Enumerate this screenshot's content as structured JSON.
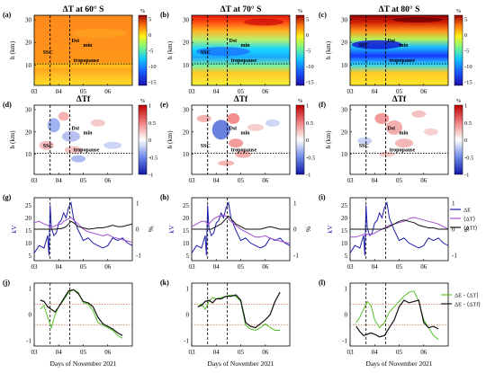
{
  "figure": {
    "panel_labels": [
      "(a)",
      "(b)",
      "(c)",
      "(d)",
      "(e)",
      "(f)",
      "(g)",
      "(h)",
      "(i)",
      "(j)",
      "(k)",
      "(l)"
    ],
    "xlabel": "Days of November 2021",
    "x_ticks": [
      "03",
      "04",
      "05",
      "06"
    ],
    "row1_titles": [
      "ΔT at 60° S",
      "ΔT at 70° S",
      "ΔT at 80° S"
    ],
    "row2_title": "ΔTf",
    "h_label": "h (km)",
    "h_ticks": [
      "10",
      "20",
      "30"
    ],
    "annotations": {
      "ssc": "SSC",
      "dst": "Dst",
      "dst_sub": "min",
      "tropo": "tropopause"
    },
    "cbar1": {
      "unit": "%",
      "ticks": [
        "5",
        "0",
        "-5",
        "-10",
        "-15"
      ]
    },
    "cbar2": {
      "unit": "%",
      "ticks": [
        "1",
        "0.5",
        "0",
        "-0.5",
        "-1"
      ]
    },
    "row3": {
      "ylabel_left": "kV",
      "ylabel_right": "%",
      "left_ticks": [
        "5",
        "10",
        "15",
        "20",
        "25"
      ],
      "right_ticks": [
        "1",
        "0",
        "-1"
      ]
    },
    "row4": {
      "ticks": [
        "1",
        "0",
        "-1"
      ]
    },
    "legend3": [
      {
        "label": "ΔE",
        "color": "#1f1fa8"
      },
      {
        "label": "⟨ΔT⟩",
        "color": "#a24fd1"
      },
      {
        "label": "⟨ΔTf⟩",
        "color": "#111111"
      }
    ],
    "legend4": [
      {
        "label": "ΔE - ⟨ΔT⟩",
        "color": "#55c02a"
      },
      {
        "label": "ΔE - ⟨ΔTf⟩",
        "color": "#111111"
      }
    ]
  },
  "chart_data": [
    {
      "type": "heatmap",
      "panel": "a",
      "title": "ΔT at 60° S",
      "xlim": [
        3,
        7
      ],
      "ylim": [
        1,
        32
      ],
      "ylabel": "h (km)",
      "ssc_day": 3.65,
      "dst_day": 4.45,
      "tropopause_km": 10.5,
      "colorbar": "%"
    },
    {
      "type": "heatmap",
      "panel": "b",
      "title": "ΔT at 70° S",
      "xlim": [
        3,
        7
      ],
      "ylim": [
        1,
        32
      ],
      "ssc_day": 3.65,
      "dst_day": 4.45,
      "tropopause_km": 10.5,
      "colorbar": "%"
    },
    {
      "type": "heatmap",
      "panel": "c",
      "title": "ΔT at 80° S",
      "xlim": [
        3,
        7
      ],
      "ylim": [
        1,
        32
      ],
      "ssc_day": 3.65,
      "dst_day": 4.45,
      "tropopause_km": 10.5,
      "colorbar": "%"
    },
    {
      "type": "heatmap",
      "panel": "d",
      "title": "ΔTf",
      "xlim": [
        3,
        7
      ],
      "ylim": [
        1,
        32
      ],
      "ssc_day": 3.65,
      "dst_day": 4.45,
      "tropopause_km": 10.5,
      "colorbar": "%"
    },
    {
      "type": "heatmap",
      "panel": "e",
      "title": "ΔTf",
      "xlim": [
        3,
        7
      ],
      "ylim": [
        1,
        32
      ],
      "ssc_day": 3.65,
      "dst_day": 4.45,
      "tropopause_km": 10.5,
      "colorbar": "%"
    },
    {
      "type": "heatmap",
      "panel": "f",
      "title": "ΔTf",
      "xlim": [
        3,
        7
      ],
      "ylim": [
        1,
        32
      ],
      "ssc_day": 3.65,
      "dst_day": 4.45,
      "tropopause_km": 10.5,
      "colorbar": "%"
    },
    {
      "type": "line",
      "panel": "g",
      "xlim": [
        3,
        7
      ],
      "ylim": [
        3,
        28
      ],
      "y2lim": [
        -1.2,
        1.2
      ],
      "x": [
        3,
        3.2,
        3.4,
        3.55,
        3.6,
        3.65,
        3.7,
        3.8,
        3.9,
        4.0,
        4.1,
        4.2,
        4.3,
        4.4,
        4.5,
        4.6,
        4.8,
        5.0,
        5.2,
        5.4,
        5.6,
        5.8,
        6.0,
        6.2,
        6.4,
        6.6,
        6.8,
        7.0
      ],
      "series": [
        {
          "name": "ΔE",
          "axis": "left",
          "values": [
            6,
            9,
            8,
            13,
            5,
            25,
            16,
            13,
            14,
            18,
            19,
            22,
            20,
            24,
            26,
            20,
            15,
            11,
            12,
            10,
            9,
            8,
            9,
            12,
            11,
            12,
            10,
            9
          ]
        },
        {
          "name": "⟨ΔT⟩",
          "axis": "right",
          "values": [
            0.25,
            0.3,
            0.2,
            0.15,
            0.1,
            0.1,
            0.1,
            0.1,
            0.15,
            0.2,
            0.2,
            0.3,
            0.35,
            0.4,
            0.45,
            0.35,
            0.2,
            0,
            -0.1,
            -0.15,
            -0.2,
            -0.25,
            -0.2,
            -0.3,
            -0.35,
            -0.4,
            -0.45,
            -0.5
          ]
        },
        {
          "name": "⟨ΔTf⟩",
          "axis": "right",
          "values": [
            0,
            0,
            0,
            0,
            0,
            0,
            0,
            0,
            0,
            0.02,
            0.02,
            0.05,
            0.1,
            0.2,
            0.3,
            0.25,
            0.1,
            0.05,
            0,
            0.02,
            0.05,
            0.05,
            0.1,
            0.15,
            0.1,
            0.1,
            0.15,
            0.2
          ]
        }
      ]
    },
    {
      "type": "line",
      "panel": "h",
      "xlim": [
        3,
        7
      ],
      "ylim": [
        3,
        28
      ],
      "y2lim": [
        -1.2,
        1.2
      ],
      "x": [
        3,
        3.2,
        3.4,
        3.55,
        3.6,
        3.65,
        3.7,
        3.8,
        3.9,
        4.0,
        4.1,
        4.2,
        4.3,
        4.4,
        4.5,
        4.6,
        4.8,
        5.0,
        5.2,
        5.4,
        5.6,
        5.8,
        6.0,
        6.2,
        6.4,
        6.6,
        6.8,
        7.0
      ],
      "series": [
        {
          "name": "ΔE",
          "axis": "left",
          "values": [
            6,
            9,
            8,
            13,
            5,
            25,
            16,
            13,
            14,
            18,
            19,
            22,
            20,
            24,
            26,
            20,
            15,
            11,
            12,
            10,
            9,
            8,
            9,
            12,
            11,
            12,
            10,
            9
          ]
        },
        {
          "name": "⟨ΔT⟩",
          "axis": "right",
          "values": [
            0.1,
            0.2,
            0.3,
            0.3,
            0.25,
            0.2,
            0.2,
            0.3,
            0.4,
            0.45,
            0.5,
            0.5,
            0.55,
            0.5,
            0.4,
            0.3,
            0.15,
            0,
            -0.1,
            -0.2,
            -0.3,
            -0.3,
            -0.25,
            -0.35,
            -0.4,
            -0.45,
            -0.5,
            -0.55
          ]
        },
        {
          "name": "⟨ΔTf⟩",
          "axis": "right",
          "values": [
            0,
            0,
            0,
            0,
            0,
            0,
            0,
            0,
            0.05,
            0.1,
            0.15,
            0.2,
            0.3,
            0.4,
            0.5,
            0.4,
            0.2,
            0.1,
            0,
            0,
            0,
            0,
            0.05,
            0.1,
            0.05,
            0,
            0,
            0
          ]
        }
      ]
    },
    {
      "type": "line",
      "panel": "i",
      "xlim": [
        3,
        7
      ],
      "ylim": [
        3,
        28
      ],
      "y2lim": [
        -1.2,
        1.2
      ],
      "x": [
        3,
        3.2,
        3.4,
        3.55,
        3.6,
        3.65,
        3.7,
        3.8,
        3.9,
        4.0,
        4.1,
        4.2,
        4.3,
        4.4,
        4.5,
        4.6,
        4.8,
        5.0,
        5.2,
        5.4,
        5.6,
        5.8,
        6.0,
        6.2,
        6.4,
        6.6,
        6.8,
        7.0
      ],
      "series": [
        {
          "name": "ΔE",
          "axis": "left",
          "values": [
            6,
            9,
            8,
            13,
            5,
            25,
            16,
            13,
            14,
            18,
            19,
            22,
            20,
            24,
            26,
            20,
            15,
            11,
            12,
            10,
            9,
            8,
            9,
            12,
            11,
            12,
            10,
            9
          ]
        },
        {
          "name": "⟨ΔT⟩",
          "axis": "right",
          "values": [
            -0.3,
            -0.3,
            -0.25,
            -0.2,
            -0.2,
            -0.2,
            -0.2,
            -0.2,
            -0.2,
            -0.15,
            -0.1,
            -0.05,
            0,
            0.05,
            0.1,
            0.15,
            0.2,
            0.25,
            0.3,
            0.4,
            0.45,
            0.4,
            0.35,
            0.3,
            0.25,
            0.2,
            0.1,
            0
          ]
        },
        {
          "name": "⟨ΔTf⟩",
          "axis": "right",
          "values": [
            0,
            0,
            0,
            0,
            0,
            0,
            0,
            0,
            0,
            0,
            0,
            0,
            0,
            0.02,
            0.05,
            0.1,
            0.2,
            0.3,
            0.35,
            0.3,
            0.25,
            0.15,
            0.1,
            0.05,
            0.05,
            0,
            0,
            0
          ]
        }
      ]
    },
    {
      "type": "line",
      "panel": "j",
      "xlim": [
        3,
        7
      ],
      "ylim": [
        -1.2,
        1.2
      ],
      "threshold_lines": [
        0.4,
        -0.4
      ],
      "series": [
        {
          "name": "ΔE - ⟨ΔT⟩",
          "x": [
            3.25,
            3.4,
            3.55,
            3.7,
            3.85,
            4.0,
            4.2,
            4.4,
            4.6,
            4.8,
            5.0,
            5.2,
            5.4,
            5.6,
            5.8,
            6.0,
            6.2,
            6.4,
            6.6
          ],
          "values": [
            0.2,
            0.35,
            -0.1,
            -0.5,
            0.0,
            0.3,
            0.55,
            0.85,
            0.95,
            0.85,
            0.45,
            0.4,
            0.15,
            -0.3,
            -0.4,
            -0.5,
            -0.6,
            -0.8,
            -0.9
          ]
        },
        {
          "name": "ΔE - ⟨ΔTf⟩",
          "x": [
            3.25,
            3.4,
            3.55,
            3.7,
            3.85,
            4.0,
            4.2,
            4.4,
            4.6,
            4.8,
            5.0,
            5.2,
            5.4,
            5.6,
            5.8,
            6.0,
            6.2,
            6.4,
            6.6
          ],
          "values": [
            0.55,
            0.5,
            0.3,
            0.2,
            0.1,
            0.3,
            0.6,
            0.9,
            0.95,
            0.8,
            0.5,
            0.45,
            0.3,
            -0.1,
            -0.35,
            -0.45,
            -0.55,
            -0.7,
            -0.8
          ]
        }
      ]
    },
    {
      "type": "line",
      "panel": "k",
      "xlim": [
        3,
        7
      ],
      "ylim": [
        -1.2,
        1.2
      ],
      "threshold_lines": [
        0.4,
        -0.4
      ],
      "series": [
        {
          "name": "ΔE - ⟨ΔT⟩",
          "x": [
            3.25,
            3.4,
            3.55,
            3.7,
            3.85,
            4.0,
            4.2,
            4.4,
            4.6,
            4.8,
            5.0,
            5.2,
            5.4,
            5.6,
            5.8,
            6.0,
            6.2,
            6.4,
            6.6
          ],
          "values": [
            0.3,
            0.4,
            0.2,
            0.5,
            0.65,
            0.6,
            0.65,
            0.7,
            0.75,
            0.7,
            0.5,
            -0.4,
            -0.55,
            -0.6,
            -0.5,
            -0.35,
            -0.5,
            -0.6,
            -0.6
          ]
        },
        {
          "name": "ΔE - ⟨ΔTf⟩",
          "x": [
            3.25,
            3.4,
            3.55,
            3.7,
            3.85,
            4.0,
            4.2,
            4.4,
            4.6,
            4.8,
            5.0,
            5.2,
            5.4,
            5.6,
            5.8,
            6.0,
            6.2,
            6.4,
            6.6
          ],
          "values": [
            0.3,
            0.35,
            0.5,
            0.55,
            0.45,
            0.6,
            0.6,
            0.7,
            0.7,
            0.75,
            0.55,
            -0.3,
            -0.45,
            -0.5,
            -0.35,
            -0.2,
            0.0,
            0.5,
            0.85
          ]
        }
      ]
    },
    {
      "type": "line",
      "panel": "l",
      "xlim": [
        3,
        7
      ],
      "ylim": [
        -1.2,
        1.2
      ],
      "threshold_lines": [
        0.4,
        -0.4
      ],
      "series": [
        {
          "name": "ΔE - ⟨ΔT⟩",
          "x": [
            3.25,
            3.4,
            3.55,
            3.7,
            3.85,
            4.0,
            4.2,
            4.4,
            4.6,
            4.8,
            5.0,
            5.2,
            5.4,
            5.6,
            5.8,
            6.0,
            6.2,
            6.4,
            6.6
          ],
          "values": [
            -0.3,
            -0.1,
            0.2,
            0.5,
            0.35,
            -0.2,
            -0.5,
            -0.3,
            0.1,
            0.3,
            0.5,
            0.7,
            0.85,
            0.9,
            0.5,
            -0.2,
            -0.5,
            -0.8,
            -0.95
          ]
        },
        {
          "name": "ΔE - ⟨ΔTf⟩",
          "x": [
            3.25,
            3.4,
            3.55,
            3.7,
            3.85,
            4.0,
            4.2,
            4.4,
            4.6,
            4.8,
            5.0,
            5.2,
            5.4,
            5.6,
            5.8,
            6.0,
            6.2,
            6.4,
            6.6
          ],
          "values": [
            -0.45,
            -0.65,
            -0.8,
            -0.75,
            -0.7,
            -0.75,
            -0.85,
            -0.8,
            -0.5,
            -0.2,
            0.3,
            0.55,
            0.45,
            0.5,
            0.55,
            -0.3,
            -0.5,
            -0.45,
            -0.55
          ]
        }
      ]
    }
  ]
}
